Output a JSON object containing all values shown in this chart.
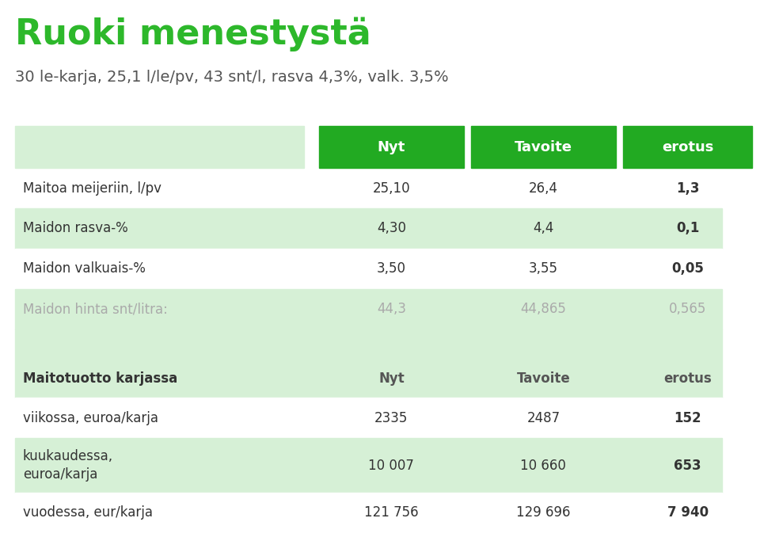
{
  "title": "Ruoki menestystä",
  "subtitle": "30 le-karja, 25,1 l/le/pv, 43 snt/l, rasva 4,3%, valk. 3,5%",
  "title_color": "#2db82b",
  "subtitle_color": "#555555",
  "header_bg": "#22aa22",
  "header_text_color": "#ffffff",
  "row_bg_light": "#d6f0d6",
  "row_bg_white": "#ffffff",
  "col_headers": [
    "",
    "Nyt",
    "Tavoite",
    "erotus"
  ],
  "section1_rows": [
    {
      "label": "Maitoa meijeriin, l/pv",
      "nyt": "25,10",
      "tavoite": "26,4",
      "erotus": "1,3",
      "erotus_bold": true,
      "label_color": "#333333",
      "data_color": "#333333"
    },
    {
      "label": "Maidon rasva-%",
      "nyt": "4,30",
      "tavoite": "4,4",
      "erotus": "0,1",
      "erotus_bold": true,
      "label_color": "#333333",
      "data_color": "#333333"
    },
    {
      "label": "Maidon valkuais-%",
      "nyt": "3,50",
      "tavoite": "3,55",
      "erotus": "0,05",
      "erotus_bold": true,
      "label_color": "#333333",
      "data_color": "#333333"
    },
    {
      "label": "Maidon hinta snt/litra:",
      "nyt": "44,3",
      "tavoite": "44,865",
      "erotus": "0,565",
      "erotus_bold": false,
      "label_color": "#aaaaaa",
      "data_color": "#aaaaaa"
    }
  ],
  "section2_header": "Maitotuotto karjassa",
  "section2_rows": [
    {
      "label": "viikossa, euroa/karja",
      "nyt": "2335",
      "tavoite": "2487",
      "erotus": "152",
      "erotus_bold": true
    },
    {
      "label": "kuukaudessa,\neuroa/karja",
      "nyt": "10 007",
      "tavoite": "10 660",
      "erotus": "653",
      "erotus_bold": true
    },
    {
      "label": "vuodessa, eur/karja",
      "nyt": "121 756",
      "tavoite": "129 696",
      "erotus": "7 940",
      "erotus_bold": true
    }
  ],
  "background_color": "#ffffff"
}
